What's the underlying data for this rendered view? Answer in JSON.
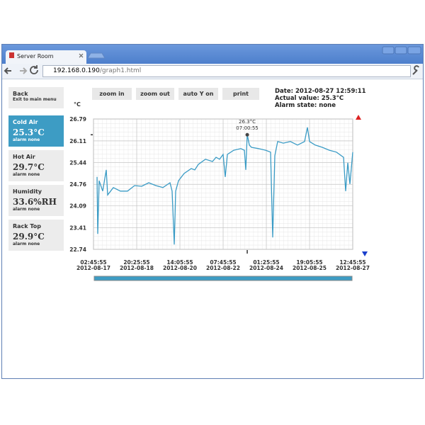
{
  "browser": {
    "tab_title": "Server Room",
    "url_host": "192.168.0.190",
    "url_path": "/graph1.html"
  },
  "sidebar": {
    "back": {
      "title": "Back",
      "subtitle": "Exit to main menu"
    },
    "sensors": [
      {
        "name": "Cold Air",
        "value": "25.3°C",
        "status": "alarm none",
        "active": true
      },
      {
        "name": "Hot Air",
        "value": "29.7°C",
        "status": "alarm none",
        "active": false
      },
      {
        "name": "Humidity",
        "value": "33.6%RH",
        "status": "alarm none",
        "active": false
      },
      {
        "name": "Rack Top",
        "value": "29.9°C",
        "status": "alarm none",
        "active": false
      }
    ]
  },
  "toolbar": {
    "buttons": [
      "zoom in",
      "zoom out",
      "auto Y on",
      "print"
    ]
  },
  "info": {
    "date": "Date: 2012-08-27 12:59:11",
    "actual": "Actual value: 25.3°C",
    "alarm": "Alarm state: none"
  },
  "chart_data": {
    "type": "line",
    "y_unit": "°C",
    "color": "#3a9bc5",
    "grid": true,
    "xlim": [
      "2012-08-17 02:45:55",
      "2012-08-27 12:45:55"
    ],
    "xticks": [
      {
        "value": "2012-08-17 02:45:55",
        "label": "02:45:55\n2012-08-17"
      },
      {
        "value": "2012-08-18 20:25:55",
        "label": "20:25:55\n2012-08-18"
      },
      {
        "value": "2012-08-20 14:05:55",
        "label": "14:05:55\n2012-08-20"
      },
      {
        "value": "2012-08-22 07:45:55",
        "label": "07:45:55\n2012-08-22"
      },
      {
        "value": "2012-08-24 01:25:55",
        "label": "01:25:55\n2012-08-24"
      },
      {
        "value": "2012-08-25 19:05:55",
        "label": "19:05:55\n2012-08-25"
      },
      {
        "value": "2012-08-27 12:45:55",
        "label": "12:45:55\n2012-08-27"
      }
    ],
    "ylim": [
      22.74,
      26.79
    ],
    "yticks": [
      26.79,
      26.11,
      25.44,
      24.76,
      24.09,
      23.41,
      22.74
    ],
    "x": [
      "2012-08-17 06:11",
      "2012-08-17 06:52",
      "2012-08-17 08:14",
      "2012-08-17 11:39",
      "2012-08-17 15:04",
      "2012-08-17 16:26",
      "2012-08-17 21:53",
      "2012-08-18 04:43",
      "2012-08-18 11:33",
      "2012-08-18 18:23",
      "2012-08-19 01:13",
      "2012-08-19 08:03",
      "2012-08-19 14:53",
      "2012-08-19 21:43",
      "2012-08-20 04:32",
      "2012-08-20 06:35",
      "2012-08-20 08:38",
      "2012-08-20 10:00",
      "2012-08-20 12:44",
      "2012-08-20 18:12",
      "2012-08-21 01:02",
      "2012-08-21 04:27",
      "2012-08-21 07:52",
      "2012-08-21 14:41",
      "2012-08-21 21:31",
      "2012-08-22 00:56",
      "2012-08-22 04:22",
      "2012-08-22 07:46",
      "2012-08-22 09:49",
      "2012-08-22 11:52",
      "2012-08-22 18:01",
      "2012-08-23 00:51",
      "2012-08-23 04:16",
      "2012-08-23 05:38",
      "2012-08-23 07:00",
      "2012-08-23 09:03",
      "2012-08-23 11:06",
      "2012-08-23 17:56",
      "2012-08-24 00:46",
      "2012-08-24 05:32",
      "2012-08-24 07:35",
      "2012-08-24 09:38",
      "2012-08-24 12:22",
      "2012-08-24 17:50",
      "2012-08-25 00:40",
      "2012-08-25 07:30",
      "2012-08-25 14:20",
      "2012-08-25 17:04",
      "2012-08-25 19:07",
      "2012-08-26 00:35",
      "2012-08-26 07:25",
      "2012-08-26 14:14",
      "2012-08-26 21:04",
      "2012-08-27 03:54",
      "2012-08-27 05:57",
      "2012-08-27 08:00",
      "2012-08-27 10:03",
      "2012-08-27 12:45"
    ],
    "values": [
      24.99,
      23.22,
      24.87,
      24.55,
      25.21,
      24.43,
      24.66,
      24.55,
      24.55,
      24.72,
      24.7,
      24.81,
      24.72,
      24.66,
      24.81,
      24.55,
      22.89,
      24.55,
      24.87,
      25.1,
      25.25,
      25.21,
      25.38,
      25.54,
      25.47,
      25.6,
      25.54,
      25.69,
      24.99,
      25.69,
      25.82,
      25.87,
      25.82,
      25.21,
      26.31,
      25.98,
      25.91,
      25.87,
      25.82,
      25.76,
      23.11,
      25.65,
      26.09,
      26.04,
      26.09,
      25.98,
      26.09,
      26.53,
      26.09,
      25.98,
      25.91,
      25.82,
      25.76,
      25.6,
      24.55,
      25.43,
      24.77,
      25.76
    ],
    "cursor": {
      "x": "2012-08-23 07:00:55",
      "value": 26.3,
      "value_label": "26.3°C",
      "time_label": "07:00:55"
    }
  }
}
